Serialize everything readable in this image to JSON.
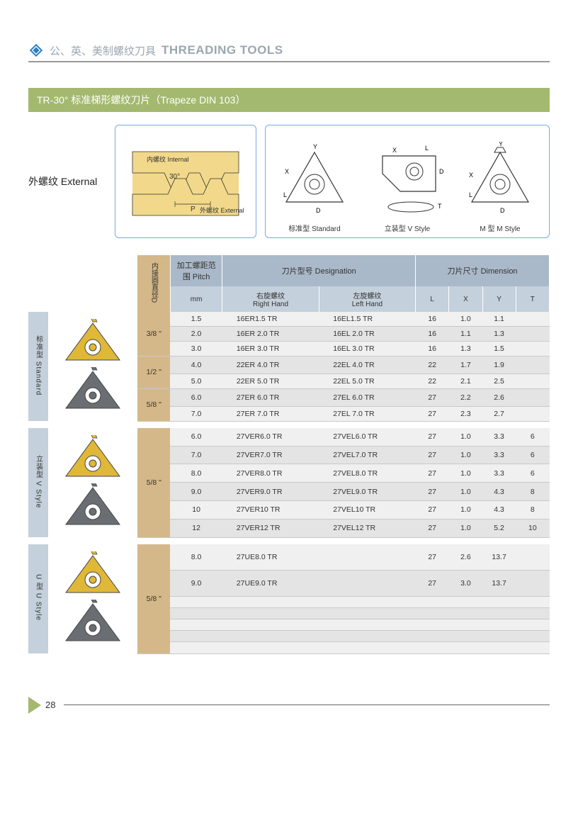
{
  "header": {
    "zh": "公、英、美制螺纹刀具",
    "en": "THREADING TOOLS"
  },
  "banner": "TR-30° 标准梯形螺纹刀片（Trapeze DIN 103）",
  "external_label": "外螺纹 External",
  "fig1": {
    "internal": "内螺纹 Internal",
    "external": "外螺纹 External",
    "angle": "30°",
    "p": "P"
  },
  "fig2": {
    "standard": "标准型  Standard",
    "vstyle": "立装型  V Style",
    "mstyle": "M 型  M Style"
  },
  "table": {
    "head1": {
      "d": "内接圆直径D",
      "pitch": "加工螺距范围 Pitch",
      "desig": "刀片型号 Designation",
      "dim": "刀片尺寸 Dimension"
    },
    "head2": {
      "mm": "mm",
      "rh": "右旋螺纹\nRight Hand",
      "lh": "左旋螺纹\nLeft Hand",
      "L": "L",
      "X": "X",
      "Y": "Y",
      "T": "T"
    }
  },
  "groups": [
    {
      "label": "标准型 Standard",
      "insert_colors": [
        "#e0b838",
        "#6a6e72"
      ],
      "rows": [
        {
          "d": "3/8 \"",
          "mm": "1.5",
          "rh": "16ER1.5  TR",
          "lh": "16EL1.5  TR",
          "L": "16",
          "X": "1.0",
          "Y": "1.1",
          "T": ""
        },
        {
          "d": "",
          "mm": "2.0",
          "rh": "16ER 2.0  TR",
          "lh": "16EL 2.0  TR",
          "L": "16",
          "X": "1.1",
          "Y": "1.3",
          "T": ""
        },
        {
          "d": "",
          "mm": "3.0",
          "rh": "16ER 3.0  TR",
          "lh": "16EL 3.0  TR",
          "L": "16",
          "X": "1.3",
          "Y": "1.5",
          "T": ""
        },
        {
          "d": "1/2 \"",
          "mm": "4.0",
          "rh": "22ER 4.0  TR",
          "lh": "22EL 4.0  TR",
          "L": "22",
          "X": "1.7",
          "Y": "1.9",
          "T": ""
        },
        {
          "d": "",
          "mm": "5.0",
          "rh": "22ER 5.0  TR",
          "lh": "22EL 5.0  TR",
          "L": "22",
          "X": "2.1",
          "Y": "2.5",
          "T": ""
        },
        {
          "d": "5/8 \"",
          "mm": "6.0",
          "rh": "27ER 6.0  TR",
          "lh": "27EL 6.0  TR",
          "L": "27",
          "X": "2.2",
          "Y": "2.6",
          "T": ""
        },
        {
          "d": "",
          "mm": "7.0",
          "rh": "27ER 7.0  TR",
          "lh": "27EL 7.0  TR",
          "L": "27",
          "X": "2.3",
          "Y": "2.7",
          "T": ""
        }
      ],
      "d_spans": [
        3,
        2,
        2
      ]
    },
    {
      "label": "立装型 V Style",
      "insert_colors": [
        "#e0b838",
        "#6a6e72"
      ],
      "rows": [
        {
          "d": "5/8 \"",
          "mm": "6.0",
          "rh": "27VER6.0  TR",
          "lh": "27VEL6.0  TR",
          "L": "27",
          "X": "1.0",
          "Y": "3.3",
          "T": "6"
        },
        {
          "d": "",
          "mm": "7.0",
          "rh": "27VER7.0  TR",
          "lh": "27VEL7.0  TR",
          "L": "27",
          "X": "1.0",
          "Y": "3.3",
          "T": "6"
        },
        {
          "d": "",
          "mm": "8.0",
          "rh": "27VER8.0  TR",
          "lh": "27VEL8.0  TR",
          "L": "27",
          "X": "1.0",
          "Y": "3.3",
          "T": "6"
        },
        {
          "d": "",
          "mm": "9.0",
          "rh": "27VER9.0  TR",
          "lh": "27VEL9.0  TR",
          "L": "27",
          "X": "1.0",
          "Y": "4.3",
          "T": "8"
        },
        {
          "d": "",
          "mm": "10",
          "rh": "27VER10  TR",
          "lh": "27VEL10  TR",
          "L": "27",
          "X": "1.0",
          "Y": "4.3",
          "T": "8"
        },
        {
          "d": "",
          "mm": "12",
          "rh": "27VER12  TR",
          "lh": "27VEL12  TR",
          "L": "27",
          "X": "1.0",
          "Y": "5.2",
          "T": "10"
        }
      ],
      "d_spans": [
        6
      ]
    },
    {
      "label": "U 型 U Style",
      "insert_colors": [
        "#e0b838",
        "#6a6e72"
      ],
      "rows": [
        {
          "d": "5/8 \"",
          "mm": "8.0",
          "rh": "27UE8.0   TR",
          "lh": "",
          "L": "27",
          "X": "2.6",
          "Y": "13.7",
          "T": ""
        },
        {
          "d": "",
          "mm": "9.0",
          "rh": "27UE9.0   TR",
          "lh": "",
          "L": "27",
          "X": "3.0",
          "Y": "13.7",
          "T": ""
        },
        {
          "d": "",
          "mm": "",
          "rh": "",
          "lh": "",
          "L": "",
          "X": "",
          "Y": "",
          "T": ""
        },
        {
          "d": "",
          "mm": "",
          "rh": "",
          "lh": "",
          "L": "",
          "X": "",
          "Y": "",
          "T": ""
        },
        {
          "d": "",
          "mm": "",
          "rh": "",
          "lh": "",
          "L": "",
          "X": "",
          "Y": "",
          "T": ""
        },
        {
          "d": "",
          "mm": "",
          "rh": "",
          "lh": "",
          "L": "",
          "X": "",
          "Y": "",
          "T": ""
        },
        {
          "d": "",
          "mm": "",
          "rh": "",
          "lh": "",
          "L": "",
          "X": "",
          "Y": "",
          "T": ""
        }
      ],
      "d_spans": [
        7
      ]
    }
  ],
  "page_number": "28",
  "colors": {
    "banner": "#a4b970",
    "header_bg1": "#aab9c9",
    "header_bg2": "#c4d0dc",
    "d_col": "#d5b889",
    "row_alt1": "#f0f0f0",
    "row_alt2": "#e4e4e4",
    "fig_border": "#7aa8e6"
  }
}
